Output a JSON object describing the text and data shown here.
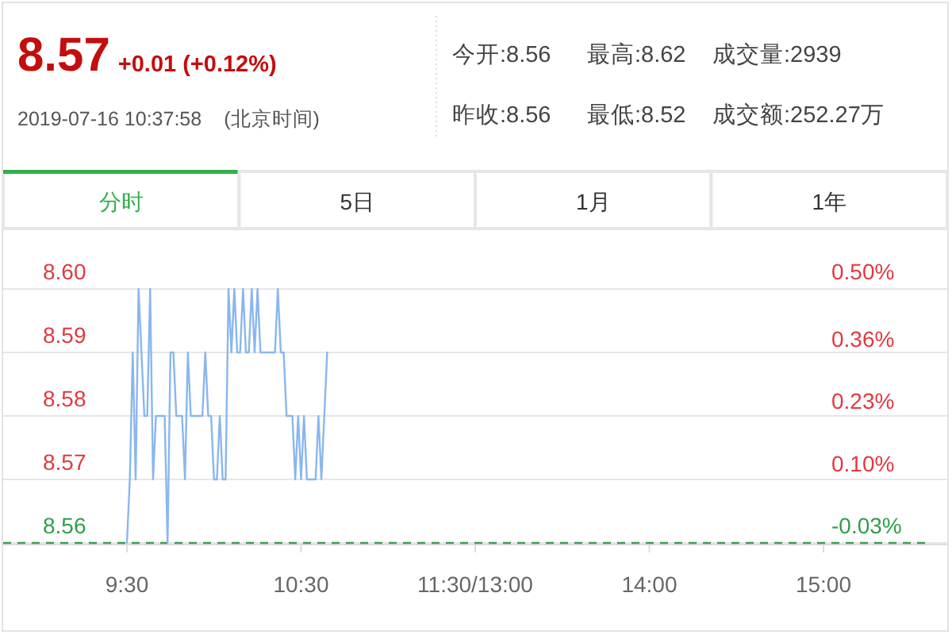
{
  "chart_data": [
    {
      "type": "other",
      "title": "8.57",
      "subtitle": "+0.01 (+0.12%)",
      "annotations": [
        "2019-07-16 10:37:58",
        "(北京时间)",
        "今开:8.56",
        "最高:8.62",
        "成交量:2939",
        "昨收:8.56",
        "最低:8.52",
        "成交额:252.27万",
        "分时",
        "5日",
        "1月",
        "1年"
      ]
    },
    {
      "type": "line",
      "categories": [
        "9:30",
        null,
        null,
        null,
        null,
        null,
        null,
        null,
        null,
        null,
        null,
        null,
        null,
        null,
        null,
        null,
        null,
        null,
        null,
        null,
        null,
        null,
        null,
        null,
        null,
        null,
        null,
        null,
        null,
        null,
        null,
        null,
        null,
        null,
        null,
        null,
        null,
        null,
        null,
        null,
        null,
        null,
        null,
        null,
        null,
        null,
        null,
        null,
        null,
        null,
        null,
        null,
        null,
        null,
        null,
        null,
        null,
        null,
        null,
        null,
        "10:30",
        null,
        null,
        null,
        null,
        null,
        null,
        null,
        null,
        null,
        null,
        null,
        null,
        null,
        null,
        null,
        null,
        null,
        null,
        null,
        null,
        null,
        null,
        null,
        null,
        null,
        null,
        null,
        null,
        null,
        null,
        null,
        null,
        null,
        null,
        null,
        null,
        null,
        null,
        null,
        null,
        null,
        null,
        null,
        null,
        null,
        null,
        null,
        null,
        null,
        null,
        null,
        null,
        null,
        null,
        null,
        null,
        null,
        null,
        null,
        "11:30/13:00",
        null,
        null,
        null,
        null,
        null,
        null,
        null,
        null,
        null,
        null,
        null,
        null,
        null,
        null,
        null,
        null,
        null,
        null,
        null,
        null,
        null,
        null,
        null,
        null,
        null,
        null,
        null,
        null,
        null,
        null,
        null,
        null,
        null,
        null,
        null,
        null,
        null,
        null,
        null,
        null,
        null,
        null,
        null,
        null,
        null,
        null,
        null,
        null,
        null,
        null,
        null,
        null,
        null,
        null,
        null,
        null,
        null,
        null,
        null,
        "14:00",
        null,
        null,
        null,
        null,
        null,
        null,
        null,
        null,
        null,
        null,
        null,
        null,
        null,
        null,
        null,
        null,
        null,
        null,
        null,
        null,
        null,
        null,
        null,
        null,
        null,
        null,
        null,
        null,
        null,
        null,
        null,
        null,
        null,
        null,
        null,
        null,
        null,
        null,
        null,
        null,
        null,
        null,
        null,
        null,
        null,
        null,
        null,
        null,
        null,
        null,
        null,
        null,
        null,
        null,
        null,
        null,
        null,
        null,
        null,
        "15:00"
      ],
      "series": [
        {
          "color": "#8ab6f0",
          "values": [
            8.56,
            8.57,
            8.59,
            8.57,
            8.6,
            8.59,
            8.58,
            8.58,
            8.6,
            8.57,
            8.58,
            8.58,
            8.58,
            8.58,
            8.56,
            8.59,
            8.59,
            8.58,
            8.58,
            8.58,
            8.57,
            8.59,
            8.58,
            8.58,
            8.58,
            8.58,
            8.58,
            8.59,
            8.58,
            8.58,
            8.57,
            8.57,
            8.58,
            8.57,
            8.57,
            8.6,
            8.59,
            8.6,
            8.59,
            8.59,
            8.6,
            8.59,
            8.59,
            8.6,
            8.59,
            8.6,
            8.59,
            8.59,
            8.59,
            8.59,
            8.59,
            8.59,
            8.6,
            8.59,
            8.59,
            8.58,
            8.58,
            8.58,
            8.57,
            8.58,
            8.57,
            8.58,
            8.57,
            8.57,
            8.57,
            8.57,
            8.58,
            8.57,
            8.58,
            8.59,
            null,
            null,
            null,
            null,
            null,
            null,
            null,
            null,
            null,
            null,
            null,
            null,
            null,
            null,
            null,
            null,
            null,
            null,
            null,
            null,
            null,
            null,
            null,
            null,
            null,
            null,
            null,
            null,
            null,
            null,
            null,
            null,
            null,
            null,
            null,
            null,
            null,
            null,
            null,
            null,
            null,
            null,
            null,
            null,
            null,
            null,
            null,
            null,
            null,
            null,
            null,
            null,
            null,
            null,
            null,
            null,
            null,
            null,
            null,
            null,
            null,
            null,
            null,
            null,
            null,
            null,
            null,
            null,
            null,
            null,
            null,
            null,
            null,
            null,
            null,
            null,
            null,
            null,
            null,
            null,
            null,
            null,
            null,
            null,
            null,
            null,
            null,
            null,
            null,
            null,
            null,
            null,
            null,
            null,
            null,
            null,
            null,
            null,
            null,
            null,
            null,
            null,
            null,
            null,
            null,
            null,
            null,
            null,
            null,
            null,
            null,
            null,
            null,
            null,
            null,
            null,
            null,
            null,
            null,
            null,
            null,
            null,
            null,
            null,
            null,
            null,
            null,
            null,
            null,
            null,
            null,
            null,
            null,
            null,
            null,
            null,
            null,
            null,
            null,
            null,
            null,
            null,
            null,
            null,
            null,
            null,
            null,
            null,
            null,
            null,
            null,
            null,
            null,
            null,
            null,
            null,
            null,
            null,
            null,
            null,
            null,
            null,
            null,
            null,
            null,
            null,
            null,
            null,
            null,
            null,
            null
          ]
        }
      ],
      "ylim": [
        8.56,
        8.6
      ],
      "yticks": [
        8.56,
        8.57,
        8.58,
        8.59,
        {
          "value": 8.6,
          "label": "8.60"
        }
      ],
      "y2lim": [
        -0.03,
        0.5
      ],
      "y2ticks": [
        {
          "value": -0.03,
          "label": "-0.03%"
        },
        {
          "value": 0.1,
          "label": "0.10%"
        },
        {
          "value": 0.23,
          "label": "0.23%"
        },
        {
          "value": 0.36,
          "label": "0.36%"
        },
        {
          "value": 0.5,
          "label": "0.50%"
        }
      ],
      "grid": "y",
      "ref_lines": [
        {
          "axis": "y",
          "value": 8.56,
          "color": "#3aa053",
          "line_style": "dashed"
        }
      ]
    }
  ]
}
